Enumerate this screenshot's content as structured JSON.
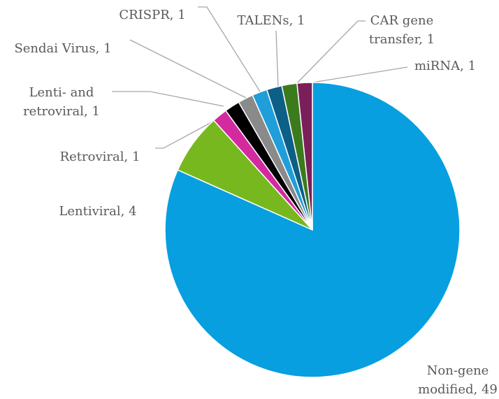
{
  "chart_data": {
    "type": "pie",
    "categories": [
      "Non-gene modified",
      "Lentiviral",
      "Retroviral",
      "Lenti- and retroviral",
      "Sendai Virus",
      "CRISPR",
      "TALENs",
      "CAR gene transfer",
      "miRNA"
    ],
    "values": [
      49,
      4,
      1,
      1,
      1,
      1,
      1,
      1,
      1
    ],
    "colors": [
      "#079fdf",
      "#78b81f",
      "#d32aa0",
      "#000000",
      "#8a8a8a",
      "#1f9ed9",
      "#0c5f86",
      "#3c7b1d",
      "#7b1f5b"
    ]
  }
}
